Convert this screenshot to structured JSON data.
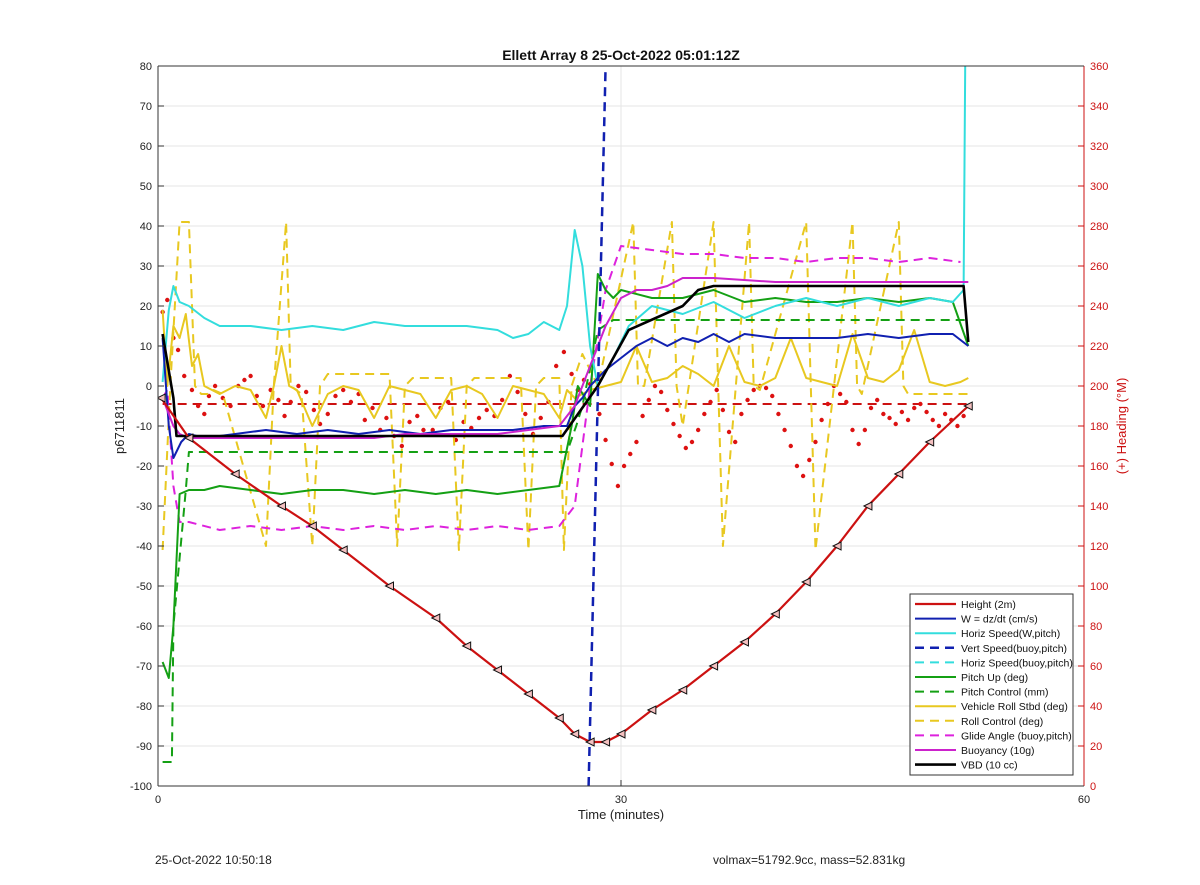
{
  "chart_data": {
    "type": "line",
    "title": "Ellett Array 8 25-Oct-2022 05:01:12Z",
    "xlabel": "Time (minutes)",
    "ylabel": "p6711811",
    "ylabel_right": "(+) Heading (°M)",
    "xlim": [
      0,
      60
    ],
    "ylim": [
      -100,
      80
    ],
    "ylim_right": [
      0,
      360
    ],
    "x_ticks": [
      "0",
      "30",
      "60"
    ],
    "y_ticks": [
      "-100",
      "-90",
      "-80",
      "-70",
      "-60",
      "-50",
      "-40",
      "-30",
      "-20",
      "-10",
      "0",
      "10",
      "20",
      "30",
      "40",
      "50",
      "60",
      "70",
      "80"
    ],
    "y_right_ticks": [
      "0",
      "20",
      "40",
      "60",
      "80",
      "100",
      "120",
      "140",
      "160",
      "180",
      "200",
      "220",
      "240",
      "260",
      "280",
      "300",
      "320",
      "340",
      "360"
    ],
    "grid": true,
    "legend_position": "bottom-right",
    "series": [
      {
        "name": "Height (2m)",
        "color": "#cc1111",
        "style": "solid",
        "width": 2.2,
        "marker": "triangle",
        "x": [
          0.2,
          2,
          5,
          8,
          10,
          12,
          15,
          18,
          20,
          22,
          24,
          26,
          27,
          28,
          29,
          30,
          32,
          34,
          36,
          38,
          40,
          42,
          44,
          46,
          48,
          50,
          52.5
        ],
        "y": [
          -3,
          -13,
          -22,
          -30,
          -35,
          -41,
          -50,
          -58,
          -65,
          -71,
          -77,
          -83,
          -87,
          -89,
          -89,
          -87,
          -81,
          -76,
          -70,
          -64,
          -57,
          -49,
          -40,
          -30,
          -22,
          -14,
          -5
        ]
      },
      {
        "name": "W = dz/dt (cm/s)",
        "color": "#1020b0",
        "style": "solid",
        "width": 2,
        "x": [
          0.3,
          0.7,
          1.0,
          1.5,
          2,
          3,
          5,
          7,
          9,
          11,
          13,
          15,
          17,
          19,
          21,
          23,
          25,
          26.5,
          27,
          27.5,
          28,
          29,
          30,
          31,
          32,
          33,
          34,
          35,
          36,
          37,
          38,
          40,
          42,
          44,
          46,
          48,
          50,
          51.5,
          52.5
        ],
        "y": [
          12,
          -10,
          -18,
          -14,
          -12,
          -13,
          -12,
          -11,
          -12,
          -11,
          -12,
          -11,
          -12,
          -11,
          -11,
          -11,
          -10,
          -10,
          -5,
          -3,
          0,
          4,
          7,
          10,
          12,
          10,
          12,
          11,
          13,
          11,
          13,
          12,
          12,
          12,
          13,
          12,
          13,
          13,
          10
        ]
      },
      {
        "name": "Horiz Speed(W,pitch)",
        "color": "#33dddd",
        "style": "solid",
        "width": 2,
        "x": [
          0.3,
          0.7,
          1.0,
          1.4,
          2,
          3,
          4,
          6,
          8,
          10,
          12,
          14,
          16,
          18,
          20,
          22,
          23,
          24,
          25,
          26,
          26.5,
          27,
          27.5,
          28,
          28.5,
          29.5,
          30.5,
          32,
          34,
          36,
          38,
          40,
          42,
          44,
          46,
          48,
          50,
          51.5,
          52.2,
          52.3
        ],
        "y": [
          1,
          19,
          25,
          21,
          20,
          17,
          15,
          15,
          14,
          15,
          14,
          16,
          15,
          15,
          15,
          14,
          12,
          13,
          16,
          14,
          20,
          39,
          30,
          10,
          0,
          7,
          15,
          20,
          18,
          21,
          17,
          20,
          22,
          20,
          22,
          20,
          22,
          21,
          24,
          80
        ]
      },
      {
        "name": "Vert Speed(buoy,pitch)",
        "color": "#1020b0",
        "style": "dashed",
        "width": 2.5,
        "x": [
          27.9,
          29.0
        ],
        "y": [
          -100,
          80
        ]
      },
      {
        "name": "Horiz Speed(buoy,pitch)",
        "color": "#33dddd",
        "style": "dashed",
        "width": 2,
        "x": [],
        "y": []
      },
      {
        "name": "Pitch Up (deg)",
        "color": "#14a014",
        "style": "solid",
        "width": 2,
        "x": [
          0.3,
          0.7,
          1.0,
          1.4,
          2,
          3,
          4,
          6,
          8,
          10,
          12,
          14,
          16,
          18,
          20,
          22,
          24,
          26,
          26.8,
          27.2,
          28,
          28.5,
          29,
          29.5,
          30,
          32,
          34,
          36,
          38,
          40,
          42,
          44,
          46,
          48,
          50,
          51.5,
          52.5
        ],
        "y": [
          -69,
          -73,
          -60,
          -27,
          -26,
          -26,
          -25,
          -26,
          -27,
          -26,
          -26,
          -27,
          -26,
          -27,
          -26,
          -27,
          -26,
          -25,
          -10,
          0,
          -5,
          28,
          24,
          22,
          24,
          22,
          22,
          24,
          21,
          22,
          21,
          21,
          22,
          21,
          22,
          21,
          10
        ]
      },
      {
        "name": "Pitch Control (mm)",
        "color": "#14a014",
        "style": "dashed",
        "width": 2,
        "x": [
          0.3,
          0.9,
          1.0,
          1.8,
          2,
          26.5,
          27.1,
          27.5,
          28.5,
          29.5,
          52.5
        ],
        "y": [
          -94,
          -94,
          -60,
          -26,
          -16.5,
          -16.5,
          -10,
          -5,
          14,
          16.5,
          16.5
        ]
      },
      {
        "name": "Vehicle Roll Stbd (deg)",
        "color": "#e8c820",
        "style": "solid",
        "width": 2,
        "x": [
          0.3,
          0.6,
          1.0,
          1.4,
          1.8,
          2.2,
          2.6,
          3.0,
          4,
          5,
          6,
          7,
          7.5,
          8,
          8.5,
          9,
          10,
          11,
          12,
          13,
          14,
          15,
          16,
          17,
          18,
          19,
          20,
          21,
          22,
          23,
          24,
          25,
          26,
          26.5,
          27,
          28,
          30,
          31,
          32,
          33,
          34,
          35,
          36,
          37,
          38,
          39,
          40,
          41,
          42,
          43,
          44,
          45,
          46,
          47,
          48,
          49,
          50,
          51,
          52,
          52.5
        ],
        "y": [
          19,
          0,
          15,
          12,
          18,
          5,
          8,
          0,
          -2,
          0,
          -1,
          -8,
          0,
          10,
          0,
          -1,
          -10,
          -2,
          0,
          -1,
          -8,
          0,
          -1,
          -2,
          -8,
          -1,
          0,
          -2,
          -8,
          0,
          -1,
          -2,
          -8,
          -1,
          -3,
          -1,
          1,
          10,
          1,
          2,
          5,
          3,
          0,
          10,
          1,
          0,
          2,
          12,
          2,
          1,
          0,
          13,
          2,
          1,
          4,
          14,
          1,
          0,
          1,
          2
        ]
      },
      {
        "name": "Roll Control (deg)",
        "color": "#e8c820",
        "style": "dashed",
        "width": 2,
        "x": [
          0.3,
          0.8,
          1.4,
          1.8,
          2.0,
          2.4,
          2.8,
          3.2,
          3.6,
          4.2,
          7.0,
          7.5,
          8.3,
          8.6,
          9.3,
          10.0,
          10.5,
          11.0,
          11.5,
          15.0,
          15.5,
          16.0,
          16.5,
          19.0,
          19.5,
          20.0,
          20.5,
          23.5,
          24.0,
          24.5,
          25.0,
          26.0,
          26.3,
          26.8,
          27.5,
          28.5,
          30.8,
          31.1,
          31.5,
          33.3,
          33.6,
          34.0,
          36.0,
          36.3,
          36.6,
          38.3,
          38.6,
          39.0,
          42.0,
          42.3,
          42.6,
          45.0,
          45.3,
          45.6,
          48.0,
          48.3,
          48.6,
          52.5
        ],
        "y": [
          -41,
          0,
          41,
          41,
          41,
          0,
          -2,
          -2,
          -1,
          -2,
          -40,
          0,
          41,
          0,
          -2,
          -40,
          0,
          3,
          3,
          3,
          -40,
          0,
          2,
          2,
          -41,
          0,
          2,
          2,
          -41,
          0,
          2,
          2,
          -41,
          0,
          8,
          0,
          41,
          0,
          0,
          41,
          0,
          -10,
          41,
          0,
          -40,
          41,
          0,
          -1,
          41,
          0,
          -41,
          41,
          0,
          -2,
          41,
          0,
          -2,
          -2
        ]
      },
      {
        "name": "Glide Angle (buoy,pitch)",
        "color": "#dd22dd",
        "style": "dashed",
        "width": 2,
        "x": [
          0.3,
          0.6,
          1.0,
          1.4,
          2,
          4,
          6,
          8,
          10,
          12,
          14,
          16,
          18,
          20,
          22,
          24,
          26,
          27,
          28,
          29,
          30,
          32,
          34,
          36,
          38,
          40,
          42,
          44,
          46,
          48,
          50,
          52
        ],
        "y": [
          -3,
          -1,
          -25,
          -34,
          -34,
          -36,
          -35,
          -36,
          -35,
          -36,
          -35,
          -36,
          -35,
          -36,
          -35,
          -36,
          -35,
          -30,
          0,
          24,
          35,
          34,
          33,
          33,
          32,
          32,
          31,
          32,
          32,
          31,
          32,
          31
        ]
      },
      {
        "name": "Buoyancy (10g)",
        "color": "#cc22cc",
        "style": "solid",
        "width": 2,
        "x": [
          0.3,
          0.7,
          1.0,
          1.4,
          2,
          4,
          6,
          8,
          10,
          12,
          14,
          16,
          18,
          20,
          22,
          24,
          26,
          27,
          28,
          29,
          30,
          31,
          32,
          33,
          34,
          35,
          36,
          40,
          44,
          48,
          52.5
        ],
        "y": [
          -3,
          -7,
          -10,
          -12,
          -13,
          -13,
          -13,
          -13,
          -13,
          -13,
          -13,
          -12,
          -12,
          -12,
          -12,
          -11,
          -10,
          -5,
          5,
          15,
          22,
          24,
          24,
          25,
          27,
          27,
          27,
          26,
          26,
          26,
          26
        ]
      },
      {
        "name": "VBD (10 cc)",
        "color": "#000000",
        "style": "solid",
        "width": 2.6,
        "x": [
          0.3,
          1.0,
          1.2,
          26.2,
          28.5,
          30.5,
          34,
          35,
          36,
          52.2,
          52.5
        ],
        "y": [
          13,
          -3,
          -12.5,
          -12.5,
          0,
          14,
          20,
          24,
          25,
          25,
          11
        ]
      }
    ],
    "heading_points_right_axis": {
      "name": "heading",
      "color": "#dd1111",
      "x": [
        0.3,
        0.6,
        1.0,
        1.3,
        1.7,
        2.2,
        2.6,
        3.0,
        3.3,
        3.7,
        4.2,
        4.7,
        5.2,
        5.6,
        6.0,
        6.4,
        6.8,
        7.3,
        7.8,
        8.2,
        8.6,
        9.1,
        9.6,
        10.1,
        10.5,
        11.0,
        11.5,
        12.0,
        12.5,
        13.0,
        13.4,
        13.9,
        14.4,
        14.8,
        15.3,
        15.8,
        16.3,
        16.8,
        17.2,
        17.8,
        18.3,
        18.8,
        19.3,
        19.8,
        20.3,
        20.8,
        21.3,
        21.8,
        22.3,
        22.8,
        23.3,
        23.8,
        24.3,
        24.8,
        25.3,
        25.8,
        26.3,
        26.8,
        27.2,
        27.6,
        28.0,
        28.6,
        29.0,
        29.4,
        29.8,
        30.2,
        30.6,
        31.0,
        31.4,
        31.8,
        32.2,
        32.6,
        33.0,
        33.4,
        33.8,
        34.2,
        34.6,
        35.0,
        35.4,
        35.8,
        36.2,
        36.6,
        37.0,
        37.4,
        37.8,
        38.2,
        38.6,
        39.0,
        39.4,
        39.8,
        40.2,
        40.6,
        41.0,
        41.4,
        41.8,
        42.2,
        42.6,
        43.0,
        43.4,
        43.8,
        44.2,
        44.6,
        45.0,
        45.4,
        45.8,
        46.2,
        46.6,
        47.0,
        47.4,
        47.8,
        48.2,
        48.6,
        49.0,
        49.4,
        49.8,
        50.2,
        50.6,
        51.0,
        51.4,
        51.8,
        52.2
      ],
      "y": [
        237,
        243,
        224,
        218,
        205,
        198,
        190,
        186,
        195,
        200,
        194,
        190,
        200,
        203,
        205,
        195,
        190,
        198,
        193,
        185,
        192,
        200,
        197,
        188,
        181,
        186,
        195,
        198,
        192,
        196,
        183,
        189,
        178,
        184,
        175,
        170,
        182,
        185,
        178,
        178,
        189,
        192,
        173,
        182,
        179,
        184,
        188,
        185,
        193,
        205,
        197,
        186,
        176,
        184,
        192,
        210,
        217,
        206,
        198,
        203,
        201,
        186,
        173,
        161,
        150,
        160,
        166,
        172,
        185,
        193,
        200,
        197,
        188,
        181,
        175,
        169,
        172,
        178,
        186,
        192,
        198,
        188,
        177,
        172,
        186,
        193,
        198,
        200,
        199,
        195,
        186,
        178,
        170,
        160,
        155,
        163,
        172,
        183,
        191,
        200,
        196,
        192,
        178,
        171,
        178,
        189,
        193,
        186,
        184,
        181,
        187,
        183,
        189,
        191,
        187,
        183,
        180,
        186,
        183,
        180,
        185
      ]
    },
    "heading_reference_dashed": {
      "name": "heading-ref",
      "color": "#cc1111",
      "y": 191
    }
  },
  "legend_lines": [
    "Height (2m)",
    "W = dz/dt (cm/s)",
    "Horiz Speed(W,pitch)",
    "Vert Speed(buoy,pitch)",
    "Horiz Speed(buoy,pitch)",
    "Pitch Up (deg)",
    "Pitch Control (mm)",
    "Vehicle Roll Stbd (deg)",
    "Roll Control (deg)",
    "Glide Angle (buoy,pitch)",
    "Buoyancy (10g)",
    "VBD (10 cc)"
  ],
  "footer": {
    "left": "25-Oct-2022 10:50:18",
    "right": "volmax=51792.9cc, mass=52.831kg"
  }
}
